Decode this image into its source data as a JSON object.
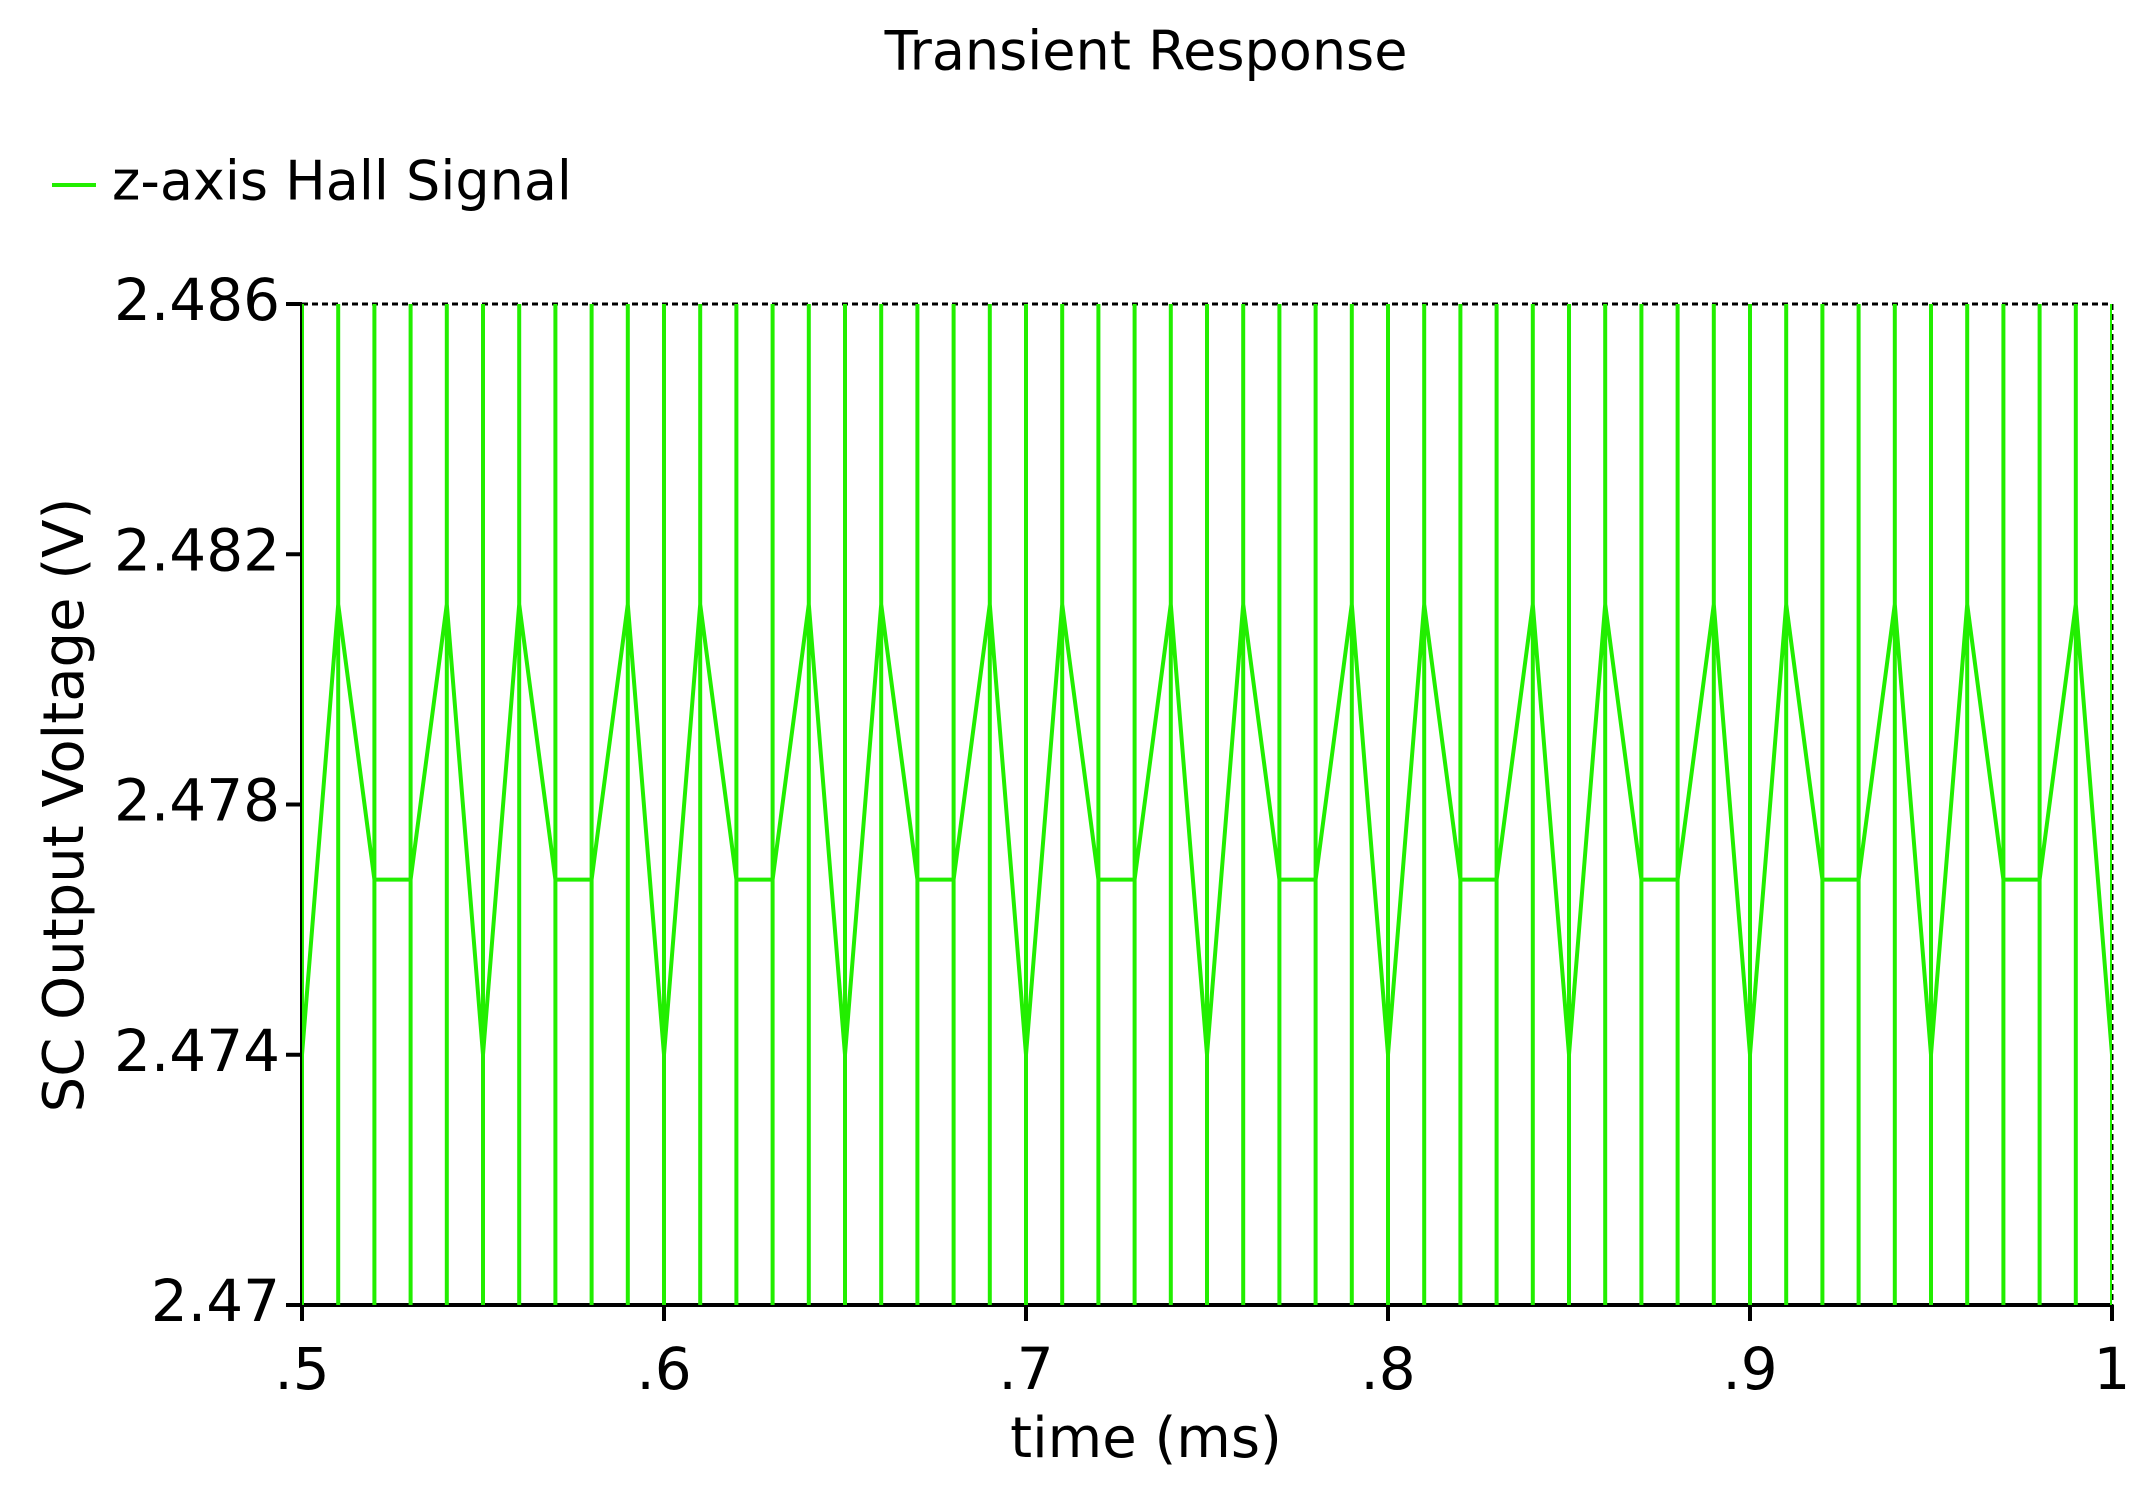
{
  "chart_data": {
    "type": "line",
    "title": "Transient Response",
    "x_label": "time (ms)",
    "y_label": "SC Output Voltage (V)",
    "xlim": [
      0.5,
      1
    ],
    "xticks": [
      {
        "value": 0.5,
        "label": ".5"
      },
      {
        "value": 0.6,
        "label": ".6"
      },
      {
        "value": 0.7,
        "label": ".7"
      },
      {
        "value": 0.8,
        "label": ".8"
      },
      {
        "value": 0.9,
        "label": ".9"
      },
      1
    ],
    "ylim": [
      2.47,
      2.486
    ],
    "yticks": [
      2.47,
      2.474,
      2.478,
      2.482,
      2.486
    ],
    "legend": "top-left",
    "x": [
      0.5,
      0.5,
      0.5,
      0.5,
      0.51,
      0.51,
      0.51,
      0.51,
      0.52,
      0.52,
      0.52,
      0.52,
      0.53,
      0.53,
      0.53,
      0.53,
      0.54,
      0.54,
      0.54,
      0.54,
      0.55,
      0.55,
      0.55,
      0.55,
      0.56,
      0.56,
      0.56,
      0.56,
      0.57,
      0.57,
      0.57,
      0.57,
      0.58,
      0.58,
      0.58,
      0.58,
      0.59,
      0.59,
      0.59,
      0.59,
      0.6,
      0.6,
      0.6,
      0.6,
      0.61,
      0.61,
      0.61,
      0.61,
      0.62,
      0.62,
      0.62,
      0.62,
      0.63,
      0.63,
      0.63,
      0.63,
      0.64,
      0.64,
      0.64,
      0.64,
      0.65,
      0.65,
      0.65,
      0.65,
      0.66,
      0.66,
      0.66,
      0.66,
      0.67,
      0.67,
      0.67,
      0.67,
      0.68,
      0.68,
      0.68,
      0.68,
      0.69,
      0.69,
      0.69,
      0.69,
      0.7,
      0.7,
      0.7,
      0.7,
      0.71,
      0.71,
      0.71,
      0.71,
      0.72,
      0.72,
      0.72,
      0.72,
      0.73,
      0.73,
      0.73,
      0.73,
      0.74,
      0.74,
      0.74,
      0.74,
      0.75,
      0.75,
      0.75,
      0.75,
      0.76,
      0.76,
      0.76,
      0.76,
      0.77,
      0.77,
      0.77,
      0.77,
      0.78,
      0.78,
      0.78,
      0.78,
      0.79,
      0.79,
      0.79,
      0.79,
      0.8,
      0.8,
      0.8,
      0.8,
      0.81,
      0.81,
      0.81,
      0.81,
      0.82,
      0.82,
      0.82,
      0.82,
      0.83,
      0.83,
      0.83,
      0.83,
      0.84,
      0.84,
      0.84,
      0.84,
      0.85,
      0.85,
      0.85,
      0.85,
      0.86,
      0.86,
      0.86,
      0.86,
      0.87,
      0.87,
      0.87,
      0.87,
      0.88,
      0.88,
      0.88,
      0.88,
      0.89,
      0.89,
      0.89,
      0.89,
      0.9,
      0.9,
      0.9,
      0.9,
      0.91,
      0.91,
      0.91,
      0.91,
      0.92,
      0.92,
      0.92,
      0.92,
      0.93,
      0.93,
      0.93,
      0.93,
      0.94,
      0.94,
      0.94,
      0.94,
      0.95,
      0.95,
      0.95,
      0.95,
      0.96,
      0.96,
      0.96,
      0.96,
      0.97,
      0.97,
      0.97,
      0.97,
      0.98,
      0.98,
      0.98,
      0.98,
      0.99,
      0.99,
      0.99,
      0.99,
      1,
      1,
      1,
      1
    ],
    "series": [
      {
        "name": "z-axis Hall Signal",
        "color": "#22ee00",
        "values": [
          2.474,
          2.486,
          2.47,
          2.474,
          2.4812,
          2.486,
          2.47,
          2.4812,
          2.4768,
          2.486,
          2.47,
          2.4768,
          2.4768,
          2.486,
          2.47,
          2.4768,
          2.4812,
          2.486,
          2.47,
          2.4812,
          2.474,
          2.486,
          2.47,
          2.474,
          2.4812,
          2.486,
          2.47,
          2.4812,
          2.4768,
          2.486,
          2.47,
          2.4768,
          2.4768,
          2.486,
          2.47,
          2.4768,
          2.4812,
          2.486,
          2.47,
          2.4812,
          2.474,
          2.486,
          2.47,
          2.474,
          2.4812,
          2.486,
          2.47,
          2.4812,
          2.4768,
          2.486,
          2.47,
          2.4768,
          2.4768,
          2.486,
          2.47,
          2.4768,
          2.4812,
          2.486,
          2.47,
          2.4812,
          2.474,
          2.486,
          2.47,
          2.474,
          2.4812,
          2.486,
          2.47,
          2.4812,
          2.4768,
          2.486,
          2.47,
          2.4768,
          2.4768,
          2.486,
          2.47,
          2.4768,
          2.4812,
          2.486,
          2.47,
          2.4812,
          2.474,
          2.486,
          2.47,
          2.474,
          2.4812,
          2.486,
          2.47,
          2.4812,
          2.4768,
          2.486,
          2.47,
          2.4768,
          2.4768,
          2.486,
          2.47,
          2.4768,
          2.4812,
          2.486,
          2.47,
          2.4812,
          2.474,
          2.486,
          2.47,
          2.474,
          2.4812,
          2.486,
          2.47,
          2.4812,
          2.4768,
          2.486,
          2.47,
          2.4768,
          2.4768,
          2.486,
          2.47,
          2.4768,
          2.4812,
          2.486,
          2.47,
          2.4812,
          2.474,
          2.486,
          2.47,
          2.474,
          2.4812,
          2.486,
          2.47,
          2.4812,
          2.4768,
          2.486,
          2.47,
          2.4768,
          2.4768,
          2.486,
          2.47,
          2.4768,
          2.4812,
          2.486,
          2.47,
          2.4812,
          2.474,
          2.486,
          2.47,
          2.474,
          2.4812,
          2.486,
          2.47,
          2.4812,
          2.4768,
          2.486,
          2.47,
          2.4768,
          2.4768,
          2.486,
          2.47,
          2.4768,
          2.4812,
          2.486,
          2.47,
          2.4812,
          2.474,
          2.486,
          2.47,
          2.474,
          2.4812,
          2.486,
          2.47,
          2.4812,
          2.4768,
          2.486,
          2.47,
          2.4768,
          2.4768,
          2.486,
          2.47,
          2.4768,
          2.4812,
          2.486,
          2.47,
          2.4812,
          2.474,
          2.486,
          2.47,
          2.474,
          2.4812,
          2.486,
          2.47,
          2.4812,
          2.4768,
          2.486,
          2.47,
          2.4768,
          2.4768,
          2.486,
          2.47,
          2.4768,
          2.4812,
          2.486,
          2.47,
          2.4812,
          2.474,
          2.486,
          2.47,
          2.474
        ]
      }
    ]
  }
}
